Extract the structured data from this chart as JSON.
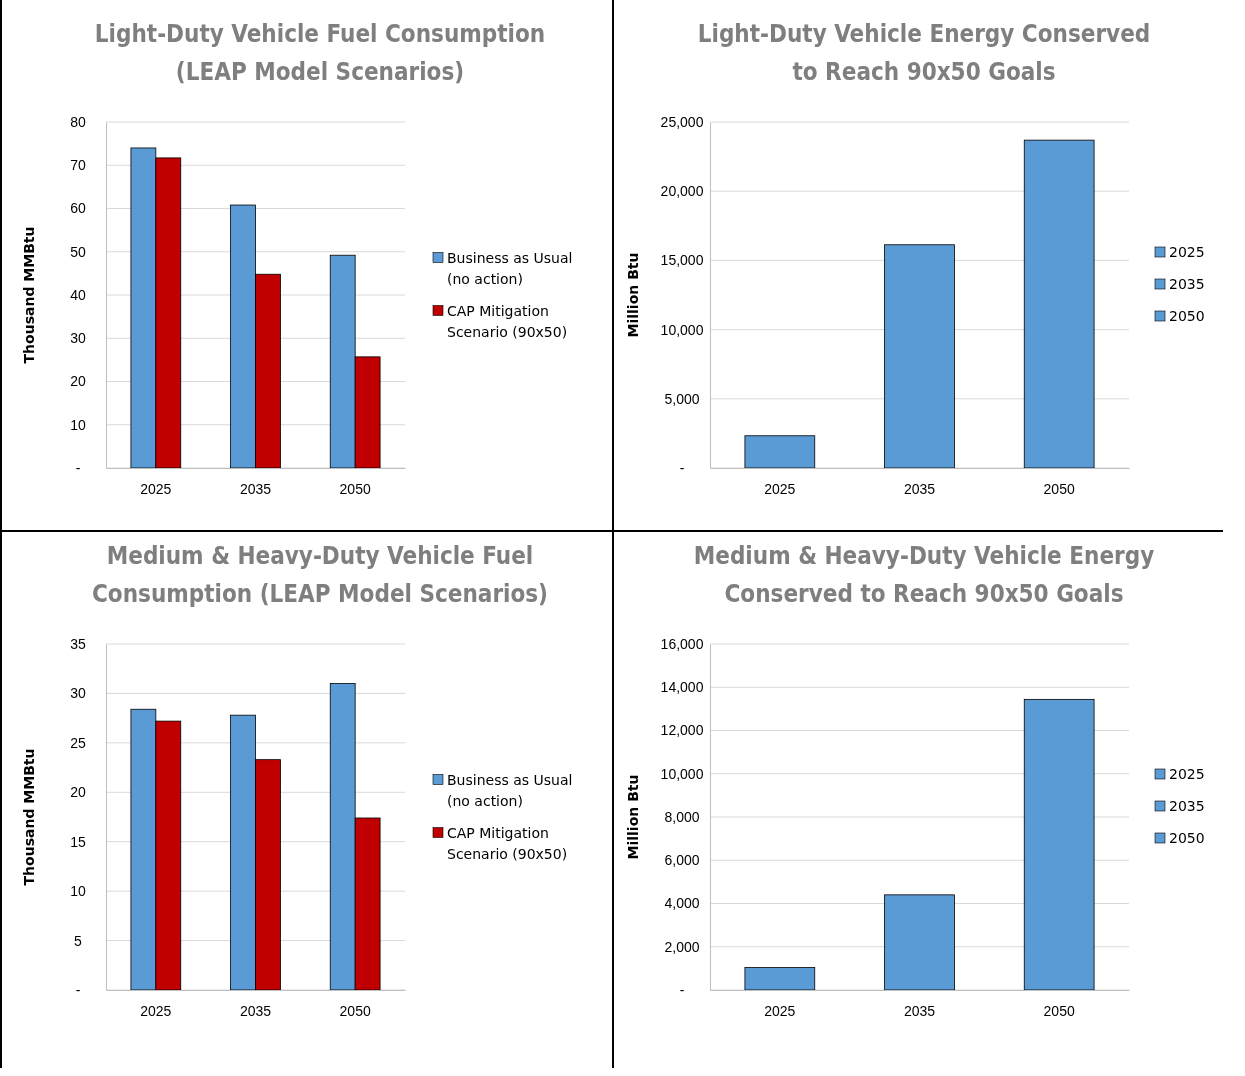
{
  "chart_data": [
    {
      "type": "bar",
      "title": "Light-Duty Vehicle Fuel Consumption (LEAP Model Scenarios)",
      "ylabel": "Thousand MMBtu",
      "categories": [
        "2025",
        "2035",
        "2050"
      ],
      "series": [
        {
          "name": "Business as Usual (no action)",
          "color": "#5b9bd5",
          "values": [
            74.0,
            60.8,
            49.2
          ]
        },
        {
          "name": "CAP Mitigation Scenario (90x50)",
          "color": "#c00000",
          "values": [
            71.7,
            44.8,
            25.7
          ]
        }
      ],
      "ylim": [
        0,
        80
      ],
      "yticks": [
        {
          "value": 0,
          "label": "-"
        },
        10,
        20,
        30,
        40,
        50,
        60,
        70,
        80
      ],
      "grid": "y",
      "legend": "right"
    },
    {
      "type": "bar",
      "title": "Light-Duty Vehicle Energy Conserved to Reach 90x50 Goals",
      "ylabel": "Million Btu",
      "categories": [
        "2025",
        "2035",
        "2050"
      ],
      "stacked": true,
      "series": [
        {
          "name": "2025",
          "color": "#5b9bd5",
          "values": [
            2330,
            null,
            null
          ]
        },
        {
          "name": "2035",
          "color": "#5b9bd5",
          "values": [
            null,
            16130,
            null
          ]
        },
        {
          "name": "2050",
          "color": "#5b9bd5",
          "values": [
            null,
            null,
            23690
          ]
        }
      ],
      "ylim": [
        0,
        25000
      ],
      "yticks": [
        {
          "value": 0,
          "label": "-"
        },
        {
          "value": 5000,
          "label": "5,000"
        },
        {
          "value": 10000,
          "label": "10,000"
        },
        {
          "value": 15000,
          "label": "15,000"
        },
        {
          "value": 20000,
          "label": "20,000"
        },
        {
          "value": 25000,
          "label": "25,000"
        }
      ],
      "grid": "y",
      "legend": "right"
    },
    {
      "type": "bar",
      "title": "Medium & Heavy-Duty Vehicle Fuel Consumption (LEAP Model Scenarios)",
      "ylabel": "Thousand MMBtu",
      "categories": [
        "2025",
        "2035",
        "2050"
      ],
      "series": [
        {
          "name": "Business as Usual (no action)",
          "color": "#5b9bd5",
          "values": [
            28.4,
            27.8,
            31.0
          ]
        },
        {
          "name": "CAP Mitigation Scenario (90x50)",
          "color": "#c00000",
          "values": [
            27.2,
            23.3,
            17.4
          ]
        }
      ],
      "ylim": [
        0,
        35
      ],
      "yticks": [
        {
          "value": 0,
          "label": "-"
        },
        5,
        10,
        15,
        20,
        25,
        30,
        35
      ],
      "grid": "y",
      "legend": "right"
    },
    {
      "type": "bar",
      "title": "Medium & Heavy-Duty Vehicle Energy Conserved to Reach 90x50 Goals",
      "ylabel": "Million Btu",
      "categories": [
        "2025",
        "2035",
        "2050"
      ],
      "stacked": true,
      "series": [
        {
          "name": "2025",
          "color": "#5b9bd5",
          "values": [
            1040,
            null,
            null
          ]
        },
        {
          "name": "2035",
          "color": "#5b9bd5",
          "values": [
            null,
            4400,
            null
          ]
        },
        {
          "name": "2050",
          "color": "#5b9bd5",
          "values": [
            null,
            null,
            13440
          ]
        }
      ],
      "ylim": [
        0,
        16000
      ],
      "yticks": [
        {
          "value": 0,
          "label": "-"
        },
        {
          "value": 2000,
          "label": "2,000"
        },
        {
          "value": 4000,
          "label": "4,000"
        },
        {
          "value": 6000,
          "label": "6,000"
        },
        {
          "value": 8000,
          "label": "8,000"
        },
        {
          "value": 10000,
          "label": "10,000"
        },
        {
          "value": 12000,
          "label": "12,000"
        },
        {
          "value": 14000,
          "label": "14,000"
        },
        {
          "value": 16000,
          "label": "16,000"
        }
      ],
      "grid": "y",
      "legend": "right"
    }
  ]
}
